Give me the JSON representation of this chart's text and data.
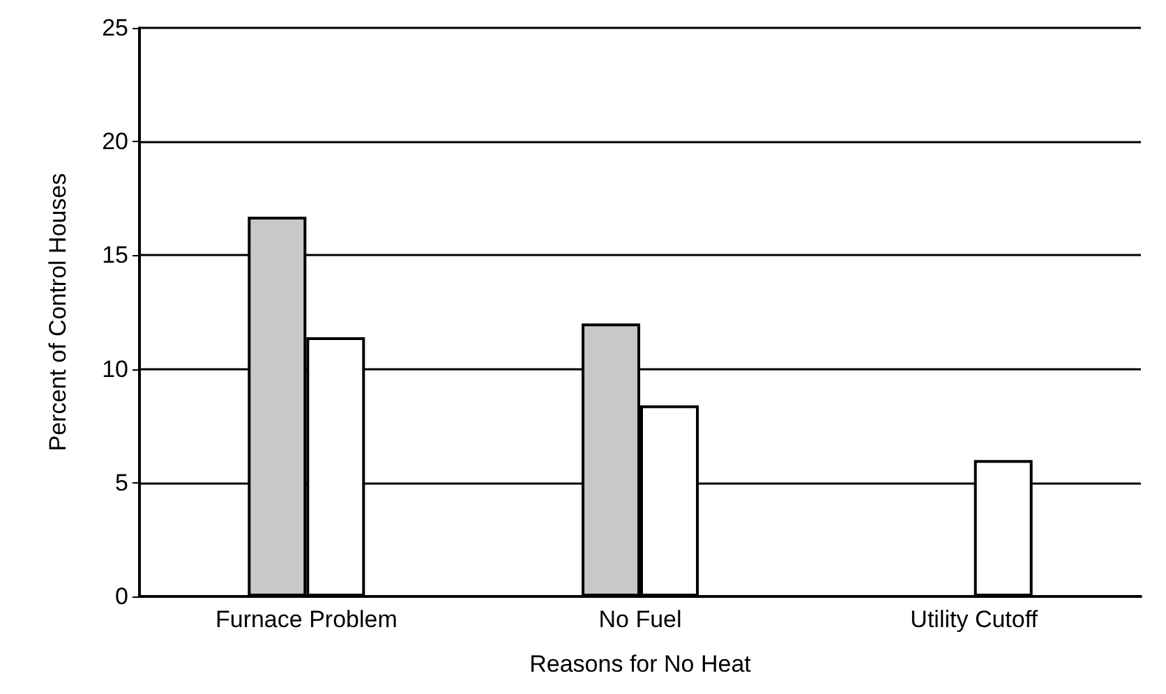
{
  "chart_data": {
    "type": "bar",
    "xlabel": "Reasons for No Heat",
    "ylabel": "Percent of Control Houses",
    "categories": [
      "Furnace Problem",
      "No Fuel",
      "Utility Cutoff"
    ],
    "series": [
      {
        "color": "#c8c8c8",
        "values": [
          16.7,
          12.0,
          null
        ]
      },
      {
        "color": "#ffffff",
        "values": [
          11.4,
          8.4,
          6.0
        ]
      }
    ],
    "ylim": [
      0,
      25
    ],
    "yticks": [
      0,
      5,
      10,
      15,
      20,
      25
    ],
    "grid": "y"
  }
}
